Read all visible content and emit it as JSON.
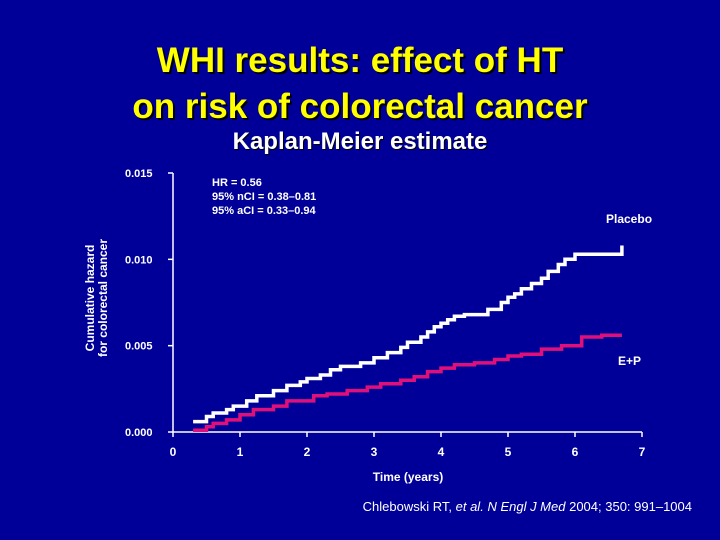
{
  "slide": {
    "title_line1": "WHI results: effect of HT",
    "title_line2": "on risk of colorectal cancer",
    "subtitle": "Kaplan-Meier estimate",
    "citation_prefix": "Chlebowski RT, ",
    "citation_etal": "et al.",
    "citation_space": " ",
    "citation_journal": "N Engl J Med",
    "citation_suffix": " 2004; 350: 991–1004"
  },
  "colors": {
    "background": "#000099",
    "title": "#FFFF00",
    "text": "#FFFFFF",
    "placebo": "#FFFFFF",
    "ep": "#E0107A"
  },
  "chart_data": {
    "type": "line",
    "title": "Kaplan-Meier estimate",
    "xlabel": "Time (years)",
    "ylabel_line1": "Cumulative hazard",
    "ylabel_line2": "for colorectal cancer",
    "xlim": [
      0,
      7
    ],
    "ylim": [
      0,
      0.015
    ],
    "x_ticks": [
      "0",
      "1",
      "2",
      "3",
      "4",
      "5",
      "6",
      "7"
    ],
    "y_ticks": [
      "0.000",
      "0.005",
      "0.010",
      "0.015"
    ],
    "grid": false,
    "annotations": {
      "hr": "HR = 0.56",
      "ci_nominal": "95% nCI = 0.38–0.81",
      "ci_adjusted": "95% aCI = 0.33–0.94"
    },
    "series": [
      {
        "name": "Placebo",
        "x": [
          0.3,
          0.5,
          0.6,
          0.8,
          0.9,
          1.1,
          1.25,
          1.5,
          1.7,
          1.9,
          2.0,
          2.2,
          2.35,
          2.5,
          2.8,
          3.0,
          3.2,
          3.4,
          3.5,
          3.7,
          3.8,
          3.9,
          4.0,
          4.1,
          4.2,
          4.35,
          4.5,
          4.7,
          4.9,
          5.0,
          5.1,
          5.2,
          5.35,
          5.5,
          5.6,
          5.75,
          5.85,
          6.0,
          6.6,
          6.7
        ],
        "y": [
          0.0006,
          0.0009,
          0.0011,
          0.0013,
          0.0015,
          0.0018,
          0.0021,
          0.0024,
          0.0027,
          0.0029,
          0.0031,
          0.0033,
          0.0036,
          0.0038,
          0.004,
          0.0043,
          0.0046,
          0.0049,
          0.0052,
          0.0055,
          0.0058,
          0.0061,
          0.0063,
          0.0065,
          0.0067,
          0.0068,
          0.0068,
          0.0071,
          0.0075,
          0.0078,
          0.008,
          0.0083,
          0.0086,
          0.0089,
          0.0093,
          0.0097,
          0.01,
          0.0103,
          0.0103,
          0.0108
        ]
      },
      {
        "name": "E+P",
        "x": [
          0.3,
          0.5,
          0.6,
          0.8,
          1.0,
          1.2,
          1.5,
          1.7,
          2.1,
          2.3,
          2.6,
          2.9,
          3.1,
          3.4,
          3.6,
          3.8,
          4.0,
          4.2,
          4.5,
          4.8,
          5.0,
          5.2,
          5.5,
          5.8,
          6.1,
          6.4,
          6.7
        ],
        "y": [
          0.0001,
          0.0003,
          0.0005,
          0.0007,
          0.001,
          0.0013,
          0.0015,
          0.0018,
          0.0021,
          0.0022,
          0.0024,
          0.0026,
          0.0028,
          0.003,
          0.0032,
          0.0035,
          0.0037,
          0.0039,
          0.004,
          0.0042,
          0.0044,
          0.0045,
          0.0048,
          0.005,
          0.0055,
          0.0056,
          0.0056
        ]
      }
    ],
    "series_labels": [
      "Placebo",
      "E+P"
    ]
  }
}
